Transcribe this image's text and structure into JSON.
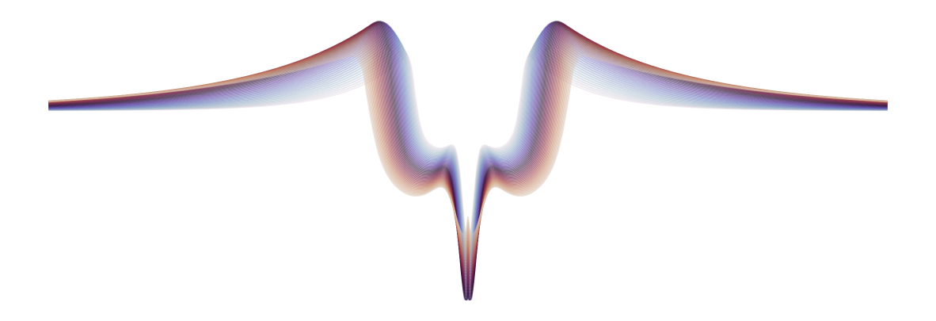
{
  "artwork": {
    "style": "overlapping translucent curve family (waveform fan), no text, no axes",
    "curve_count": 48,
    "stroke_opacity": 0.45,
    "color_scale": "twilight-shifted",
    "colors": [
      "#e2d9e2",
      "#9fb7c9",
      "#6e7dbf",
      "#5a3a9c",
      "#2f1436",
      "#6e1a44",
      "#a44a4a",
      "#c98e6e",
      "#d9c3b1"
    ]
  }
}
